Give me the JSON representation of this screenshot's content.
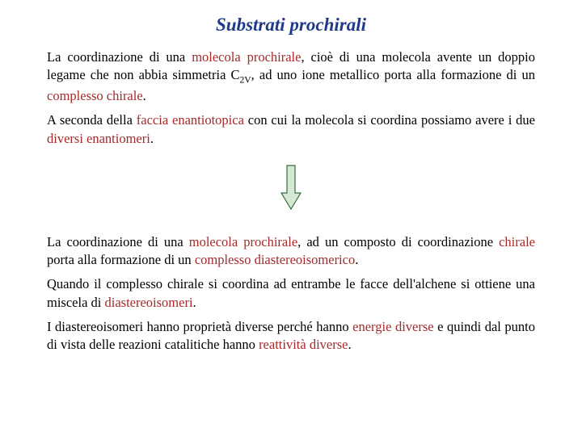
{
  "title": {
    "text": "Substrati prochirali",
    "color": "#1f3a8a",
    "fontsize": 23
  },
  "colors": {
    "body_text": "#000000",
    "highlight": "#a52a2a",
    "background": "#ffffff",
    "arrow_stroke": "#3a6b3a",
    "arrow_fill": "#d4e8d4"
  },
  "body_fontsize": 16.5,
  "paragraph1": {
    "runs": [
      {
        "t": "La coordinazione di una ",
        "c": "#000000"
      },
      {
        "t": "molecola prochirale",
        "c": "#a52a2a"
      },
      {
        "t": ", cioè di una molecola avente un doppio legame che non abbia simmetria C",
        "c": "#000000"
      },
      {
        "t": "2V",
        "c": "#000000",
        "sub": true
      },
      {
        "t": ", ad uno ione metallico porta alla formazione di un ",
        "c": "#000000"
      },
      {
        "t": "complesso chirale",
        "c": "#a52a2a"
      },
      {
        "t": ".",
        "c": "#000000"
      }
    ]
  },
  "paragraph2": {
    "runs": [
      {
        "t": "A seconda della ",
        "c": "#000000"
      },
      {
        "t": "faccia enantiotopica ",
        "c": "#a52a2a"
      },
      {
        "t": "con cui la molecola si coordina possiamo avere i due ",
        "c": "#000000"
      },
      {
        "t": "diversi enantiomeri",
        "c": "#a52a2a"
      },
      {
        "t": ".",
        "c": "#000000"
      }
    ]
  },
  "paragraph3": {
    "runs": [
      {
        "t": "La coordinazione di una ",
        "c": "#000000"
      },
      {
        "t": "molecola prochirale",
        "c": "#a52a2a"
      },
      {
        "t": ", ad un composto di coordinazione ",
        "c": "#000000"
      },
      {
        "t": "chirale ",
        "c": "#a52a2a"
      },
      {
        "t": "porta alla formazione di un ",
        "c": "#000000"
      },
      {
        "t": "complesso diastereoisomerico",
        "c": "#a52a2a"
      },
      {
        "t": ".",
        "c": "#000000"
      }
    ]
  },
  "paragraph4": {
    "runs": [
      {
        "t": "Quando il complesso chirale si coordina ad entrambe le facce dell'alchene si ottiene una miscela di ",
        "c": "#000000"
      },
      {
        "t": "diastereoisomeri",
        "c": "#a52a2a"
      },
      {
        "t": ".",
        "c": "#000000"
      }
    ]
  },
  "paragraph5": {
    "runs": [
      {
        "t": "I diastereoisomeri hanno proprietà diverse perché hanno ",
        "c": "#000000"
      },
      {
        "t": "energie diverse ",
        "c": "#a52a2a"
      },
      {
        "t": "e quindi dal punto di vista delle reazioni catalitiche hanno ",
        "c": "#000000"
      },
      {
        "t": "reattività diverse",
        "c": "#a52a2a"
      },
      {
        "t": ".",
        "c": "#000000"
      }
    ]
  },
  "arrow": {
    "width": 28,
    "height": 58
  }
}
